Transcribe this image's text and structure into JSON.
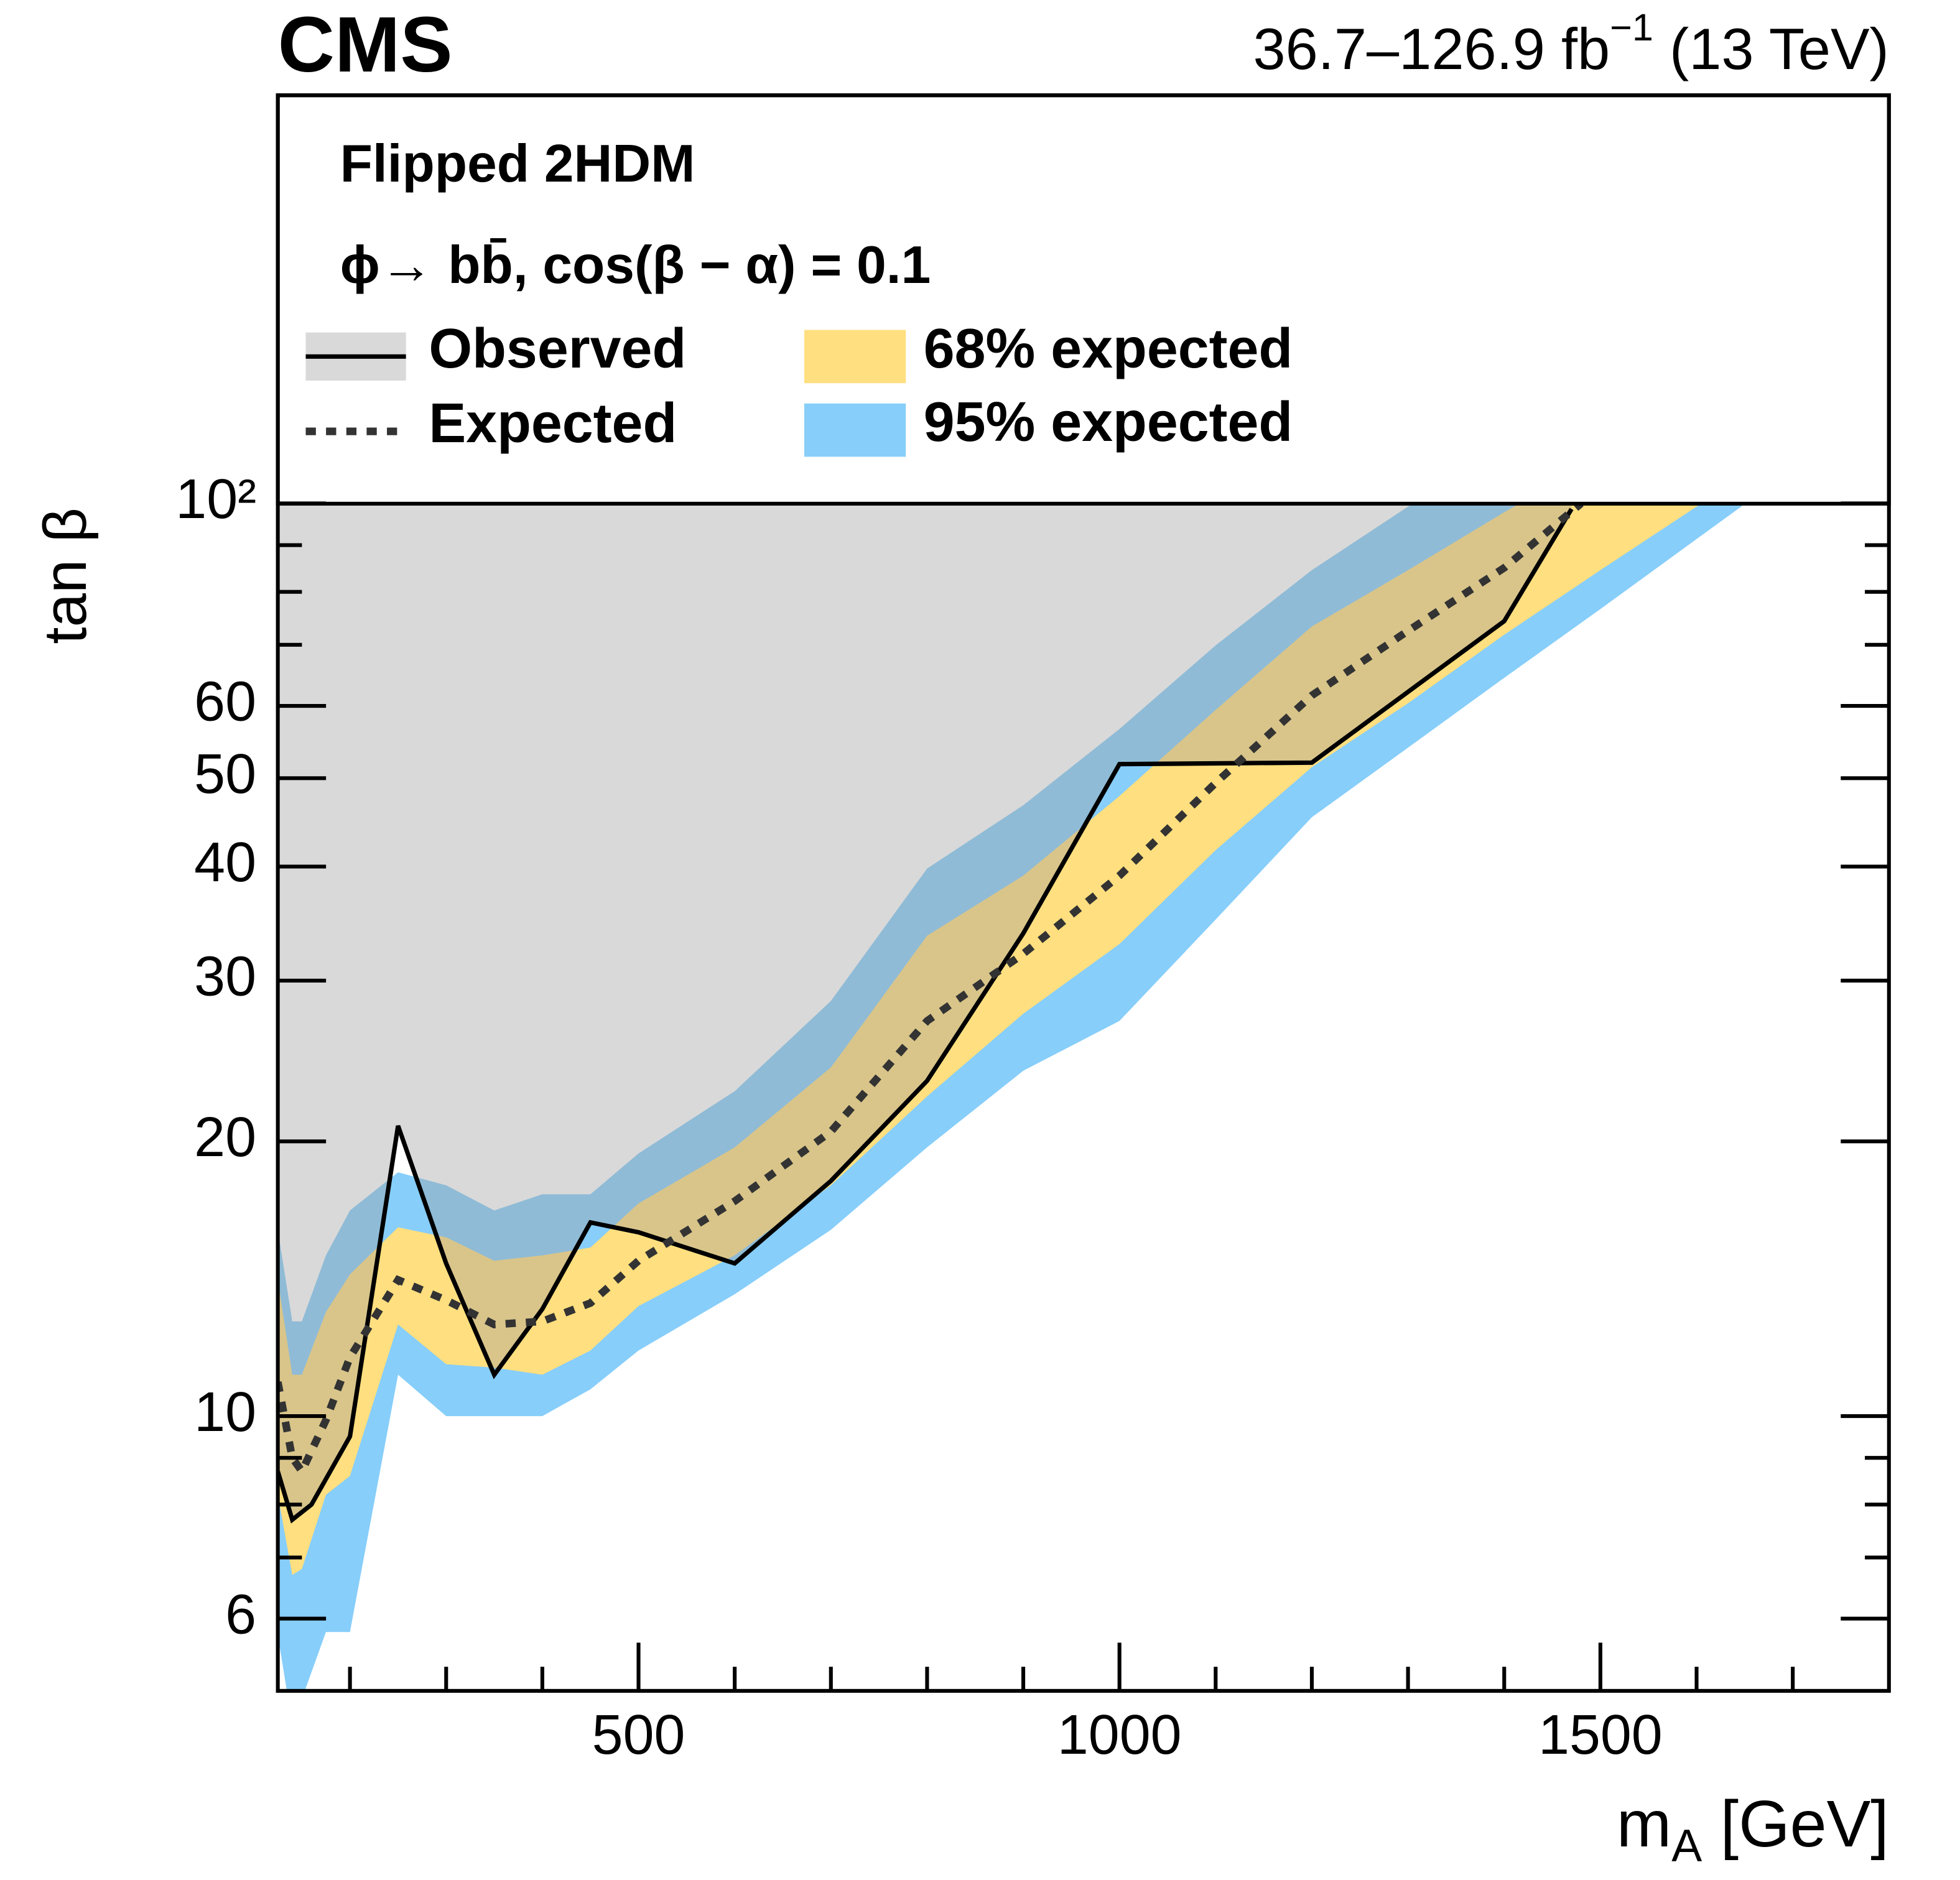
{
  "chart_data": {
    "type": "line",
    "title": "CMS",
    "subtitle": [
      "36.7–126.9 fb",
      "−1",
      " (13 TeV)"
    ],
    "model": "Flipped 2HDM",
    "process": "ϕ→ bb̄, cos(β − α) = 0.1",
    "xlabel": [
      "m",
      "A",
      " [GeV]"
    ],
    "ylabel": "tan β",
    "xlim": [
      125,
      1800
    ],
    "xticks": [
      500,
      1000,
      1500
    ],
    "xminorticks": [
      200,
      300,
      400,
      600,
      700,
      800,
      900,
      1100,
      1200,
      1300,
      1400,
      1600,
      1700
    ],
    "ylim": [
      5,
      280
    ],
    "log_y": true,
    "yticks": [
      6,
      10,
      20,
      30,
      40,
      50,
      60,
      {
        "value": 100,
        "label": "10²"
      }
    ],
    "yminorticks": [
      7,
      8,
      9,
      70,
      80,
      90
    ],
    "bands": [
      {
        "name": "95% expected",
        "color": "#87cefa",
        "x": [
          125,
          140,
          150,
          175,
          200,
          250,
          300,
          350,
          400,
          450,
          500,
          600,
          700,
          800,
          900,
          1000,
          1100,
          1200,
          1300,
          1400,
          1500,
          1600,
          1700,
          1800
        ],
        "upper": [
          16.0,
          12.7,
          12.7,
          15.0,
          16.8,
          18.5,
          17.9,
          16.8,
          17.5,
          17.5,
          19.4,
          22.7,
          28.5,
          39.8,
          46.7,
          56.6,
          69.9,
          84.5,
          99.2,
          116,
          136,
          160,
          188,
          220
        ],
        "lower": [
          5.75,
          4.6,
          4.9,
          5.8,
          5.8,
          11.1,
          10.0,
          10.0,
          10.0,
          10.7,
          11.8,
          13.6,
          16.0,
          19.7,
          23.9,
          27.1,
          35.0,
          45.3,
          54.0,
          64.4,
          76.6,
          91.4,
          109,
          128
        ]
      },
      {
        "name": "68% expected",
        "color": "#ffdf7f",
        "x": [
          125,
          140,
          150,
          175,
          200,
          250,
          300,
          350,
          400,
          450,
          500,
          600,
          700,
          800,
          900,
          1000,
          1100,
          1200,
          1300,
          1400,
          1500,
          1600,
          1700,
          1800
        ],
        "upper": [
          14.1,
          11.1,
          11.1,
          13.0,
          14.3,
          16.1,
          15.7,
          14.8,
          15.0,
          15.3,
          17.1,
          19.7,
          24.1,
          33.6,
          39.1,
          47.8,
          59.4,
          73.3,
          84.5,
          97.8,
          112,
          130,
          150,
          175
        ],
        "lower": [
          8.2,
          6.7,
          6.8,
          8.2,
          8.6,
          12.6,
          11.4,
          11.3,
          11.1,
          11.8,
          13.2,
          15.0,
          17.9,
          22.4,
          27.6,
          32.9,
          41.7,
          51.4,
          60.4,
          71.8,
          84.5,
          99.2,
          116,
          136
        ]
      }
    ],
    "series": [
      {
        "name": "Observed",
        "color": "#000000",
        "fill": "#9c9c9c",
        "x": [
          125,
          140,
          160,
          200,
          250,
          300,
          350,
          400,
          450,
          500,
          600,
          700,
          800,
          900,
          1000,
          1200,
          1400,
          1470
        ],
        "values": [
          8.7,
          7.7,
          8.0,
          9.5,
          20.8,
          14.7,
          11.1,
          13.1,
          16.3,
          15.9,
          14.7,
          18.1,
          23.3,
          33.8,
          51.8,
          52.0,
          74.3,
          98.6
        ]
      },
      {
        "name": "Expected",
        "color": "#333333",
        "dashed": true,
        "x": [
          125,
          140,
          150,
          175,
          200,
          250,
          300,
          350,
          400,
          450,
          500,
          600,
          700,
          800,
          900,
          1000,
          1100,
          1200,
          1300,
          1400,
          1480
        ],
        "values": [
          10.9,
          9.0,
          8.7,
          9.9,
          11.6,
          14.1,
          13.4,
          12.6,
          12.7,
          13.3,
          14.8,
          17.2,
          20.5,
          27.1,
          32.1,
          39.1,
          49.4,
          61.6,
          72.5,
          85.0,
          100
        ]
      }
    ]
  }
}
